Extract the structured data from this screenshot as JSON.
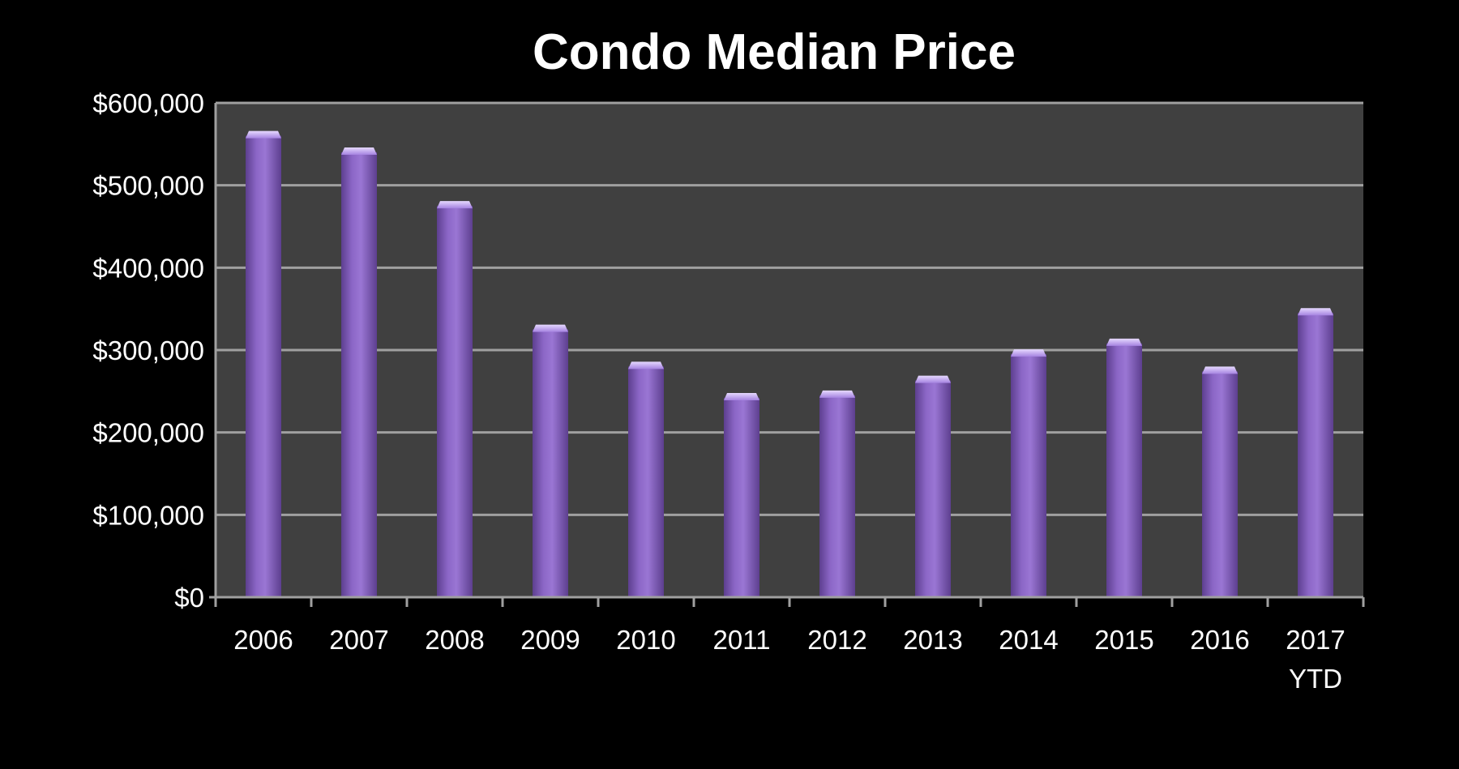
{
  "chart_data": {
    "type": "bar",
    "title": "Condo Median Price",
    "xlabel": "",
    "ylabel": "",
    "categories": [
      "2006",
      "2007",
      "2008",
      "2009",
      "2010",
      "2011",
      "2012",
      "2013",
      "2014",
      "2015",
      "2016",
      "2017 YTD"
    ],
    "category_lines": [
      [
        "2006"
      ],
      [
        "2007"
      ],
      [
        "2008"
      ],
      [
        "2009"
      ],
      [
        "2010"
      ],
      [
        "2011"
      ],
      [
        "2012"
      ],
      [
        "2013"
      ],
      [
        "2014"
      ],
      [
        "2015"
      ],
      [
        "2016"
      ],
      [
        "2017",
        "YTD"
      ]
    ],
    "values": [
      560000,
      540000,
      475000,
      325000,
      280000,
      242000,
      245000,
      263000,
      295000,
      308000,
      274000,
      345000
    ],
    "ylim": [
      0,
      600000
    ],
    "yticks": [
      0,
      100000,
      200000,
      300000,
      400000,
      500000,
      600000
    ],
    "ytick_labels": [
      "$0",
      "$100,000",
      "$200,000",
      "$300,000",
      "$400,000",
      "$500,000",
      "$600,000"
    ],
    "grid": true,
    "legend": "none",
    "colors": {
      "page_background": "#000000",
      "plot_background": "#404040",
      "gridline": "#a0a0a0",
      "bar": "#8b66c6",
      "bar_top": "#c2a7f0",
      "bar_dark": "#5d3f8f",
      "text": "#ffffff"
    }
  }
}
